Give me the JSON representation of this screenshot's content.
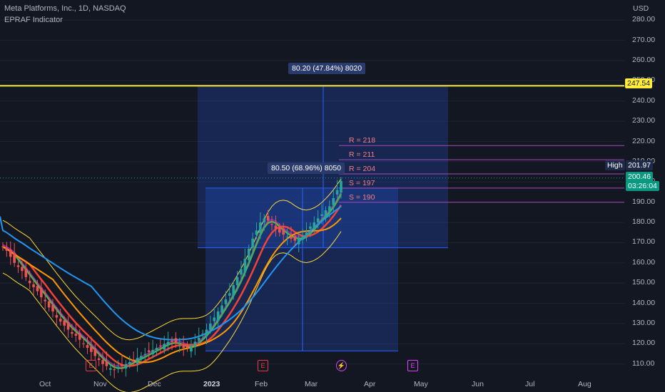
{
  "header": {
    "symbol": "Meta Platforms, Inc., 1D, NASDAQ",
    "indicator": "EPRAF Indicator"
  },
  "price_axis": {
    "currency": "USD",
    "ticks": [
      "280.00",
      "270.00",
      "260.00",
      "250.00",
      "240.00",
      "230.00",
      "220.00",
      "210.00",
      "200.00",
      "190.00",
      "180.00",
      "170.00",
      "160.00",
      "150.00",
      "140.00",
      "130.00",
      "120.00",
      "110.00"
    ],
    "yellow_line_label": "247.54",
    "high_label": "High",
    "high_value": "201.97",
    "last_price": "200.46",
    "countdown": "03:26:04"
  },
  "time_axis": [
    "Oct",
    "Nov",
    "Dec",
    "2023",
    "Feb",
    "Mar",
    "Apr",
    "May",
    "Jun",
    "Jul",
    "Aug"
  ],
  "annotations": {
    "range_outer": "80.20 (47.84%) 8020",
    "range_inner": "80.50 (68.96%) 8050",
    "levels": [
      {
        "label": "R = 218",
        "value": 218
      },
      {
        "label": "R = 211",
        "value": 211
      },
      {
        "label": "R = 204",
        "value": 204
      },
      {
        "label": "S = 197",
        "value": 197
      },
      {
        "label": "S = 190",
        "value": 190
      }
    ]
  },
  "event_markers": [
    {
      "type": "earnings",
      "glyph": "E",
      "color": "#f23645"
    },
    {
      "type": "earnings",
      "glyph": "E",
      "color": "#f23645"
    },
    {
      "type": "split",
      "glyph": "⚡",
      "color": "#e040fb"
    },
    {
      "type": "earnings",
      "glyph": "E",
      "color": "#e040fb"
    }
  ],
  "colors": {
    "background": "#131722",
    "up": "#26a69a",
    "down": "#ef5350",
    "yellow_line": "#ffeb3b",
    "accent_blue": "#2962ff"
  },
  "chart_data": {
    "type": "candlestick",
    "yrange": [
      105,
      285
    ],
    "yellow_line": 247.54,
    "closes": [
      168,
      166,
      163,
      160,
      158,
      156,
      153,
      150,
      148,
      146,
      143,
      141,
      138,
      136,
      133,
      131,
      129,
      127,
      125,
      124,
      122,
      120,
      118,
      116,
      114,
      112,
      110,
      109,
      108,
      107,
      108,
      109,
      110,
      111,
      112,
      113,
      114,
      115,
      116,
      117,
      118,
      119,
      120,
      121,
      121,
      120,
      119,
      118,
      118,
      119,
      121,
      123,
      125,
      127,
      130,
      133,
      136,
      139,
      142,
      145,
      149,
      153,
      157,
      162,
      167,
      172,
      176,
      180,
      182,
      181,
      179,
      177,
      175,
      174,
      173,
      172,
      171,
      172,
      173,
      175,
      178,
      180,
      182,
      184,
      186,
      188,
      192,
      196,
      200.46
    ]
  }
}
